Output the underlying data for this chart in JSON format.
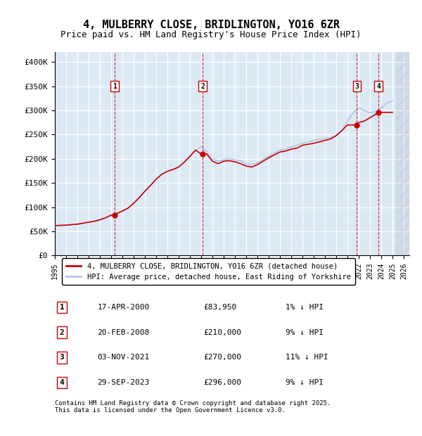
{
  "title": "4, MULBERRY CLOSE, BRIDLINGTON, YO16 6ZR",
  "subtitle": "Price paid vs. HM Land Registry's House Price Index (HPI)",
  "ylabel_ticks": [
    "£0",
    "£50K",
    "£100K",
    "£150K",
    "£200K",
    "£250K",
    "£300K",
    "£350K",
    "£400K"
  ],
  "ytick_values": [
    0,
    50000,
    100000,
    150000,
    200000,
    250000,
    300000,
    350000,
    400000
  ],
  "ylim": [
    0,
    420000
  ],
  "xlim_start": 1995.5,
  "xlim_end": 2026.5,
  "hpi_color": "#aec6e8",
  "price_color": "#cc0000",
  "dashed_line_color": "#cc0000",
  "background_color": "#dce9f5",
  "plot_bg_color": "#dce9f5",
  "legend_label_price": "4, MULBERRY CLOSE, BRIDLINGTON, YO16 6ZR (detached house)",
  "legend_label_hpi": "HPI: Average price, detached house, East Riding of Yorkshire",
  "transactions": [
    {
      "num": 1,
      "date": "17-APR-2000",
      "price": 83950,
      "pct": "1%",
      "year": 2000.3
    },
    {
      "num": 2,
      "date": "20-FEB-2008",
      "price": 210000,
      "pct": "9%",
      "year": 2008.13
    },
    {
      "num": 3,
      "date": "03-NOV-2021",
      "price": 270000,
      "pct": "11%",
      "year": 2021.84
    },
    {
      "num": 4,
      "date": "29-SEP-2023",
      "price": 296000,
      "pct": "9%",
      "year": 2023.75
    }
  ],
  "footer": "Contains HM Land Registry data © Crown copyright and database right 2025.\nThis data is licensed under the Open Government Licence v3.0.",
  "hpi_data_years": [
    1995,
    1995.5,
    1996,
    1996.5,
    1997,
    1997.5,
    1998,
    1998.5,
    1999,
    1999.5,
    2000,
    2000.5,
    2001,
    2001.5,
    2002,
    2002.5,
    2003,
    2003.5,
    2004,
    2004.5,
    2005,
    2005.5,
    2006,
    2006.5,
    2007,
    2007.5,
    2008,
    2008.5,
    2009,
    2009.5,
    2010,
    2010.5,
    2011,
    2011.5,
    2012,
    2012.5,
    2013,
    2013.5,
    2014,
    2014.5,
    2015,
    2015.5,
    2016,
    2016.5,
    2017,
    2017.5,
    2018,
    2018.5,
    2019,
    2019.5,
    2020,
    2020.5,
    2021,
    2021.5,
    2022,
    2022.5,
    2023,
    2023.5,
    2024,
    2024.5,
    2025
  ],
  "hpi_data_values": [
    62000,
    62500,
    63000,
    64000,
    65000,
    67000,
    69000,
    71000,
    74000,
    78000,
    82000,
    87000,
    92000,
    98000,
    108000,
    120000,
    133000,
    145000,
    158000,
    168000,
    174000,
    178000,
    183000,
    193000,
    205000,
    218000,
    225000,
    215000,
    200000,
    195000,
    198000,
    200000,
    198000,
    196000,
    190000,
    188000,
    192000,
    198000,
    205000,
    212000,
    218000,
    220000,
    225000,
    228000,
    232000,
    235000,
    238000,
    240000,
    242000,
    244000,
    248000,
    258000,
    278000,
    295000,
    305000,
    300000,
    295000,
    298000,
    305000,
    315000,
    320000
  ],
  "price_data_years": [
    1995,
    1995.5,
    1996,
    1996.5,
    1997,
    1997.5,
    1998,
    1998.5,
    1999,
    1999.5,
    2000,
    2000.3,
    2000.5,
    2001,
    2001.5,
    2002,
    2002.5,
    2003,
    2003.5,
    2004,
    2004.5,
    2005,
    2005.5,
    2006,
    2006.5,
    2007,
    2007.5,
    2008,
    2008.13,
    2008.5,
    2009,
    2009.5,
    2010,
    2010.5,
    2011,
    2011.5,
    2012,
    2012.5,
    2013,
    2013.5,
    2014,
    2014.5,
    2015,
    2015.5,
    2016,
    2016.5,
    2017,
    2017.5,
    2018,
    2018.5,
    2019,
    2019.5,
    2020,
    2020.5,
    2021,
    2021.5,
    2021.84,
    2022,
    2022.5,
    2023,
    2023.5,
    2023.75,
    2024,
    2024.5,
    2025
  ],
  "price_data_values": [
    62000,
    62500,
    63000,
    64000,
    65000,
    67000,
    69000,
    71000,
    74000,
    78000,
    83950,
    83950,
    87000,
    92000,
    98000,
    108000,
    120000,
    133000,
    145000,
    158000,
    168000,
    174000,
    178000,
    183000,
    193000,
    205000,
    218000,
    210000,
    210000,
    210000,
    195000,
    190000,
    195000,
    196000,
    194000,
    190000,
    185000,
    183000,
    188000,
    195000,
    202000,
    208000,
    214000,
    216000,
    220000,
    222000,
    228000,
    230000,
    232000,
    235000,
    238000,
    241000,
    248000,
    258000,
    270000,
    270000,
    270000,
    275000,
    278000,
    285000,
    292000,
    296000,
    296000,
    296000,
    296000
  ]
}
